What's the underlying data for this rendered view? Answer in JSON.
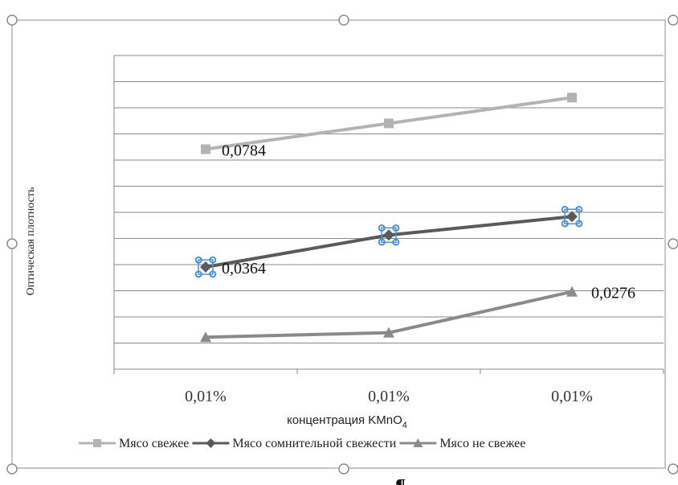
{
  "chart_data": {
    "type": "line",
    "categories": [
      "0,01%",
      "0,01%",
      "0,01%"
    ],
    "xlabel": "концентрация KMnO",
    "xlabel_subscript": "4",
    "ylabel": "Оптическая плотность",
    "title": "",
    "y_grid_lines": 12,
    "grid": true,
    "legend_position": "bottom",
    "series": [
      {
        "name": "Мясо свежее",
        "color": "#b3b3b3",
        "marker": "square",
        "values": [
          0.0784,
          0.0876,
          0.0968
        ],
        "data_labels": [
          "0,0784",
          "",
          ""
        ]
      },
      {
        "name": "Мясо сомнительной свежести",
        "color": "#5a5a5a",
        "marker": "diamond",
        "values": [
          0.0364,
          0.0478,
          0.0544
        ],
        "data_labels": [
          "0,0364",
          "",
          ""
        ]
      },
      {
        "name": "Мясо не свежее",
        "color": "#8a8a8a",
        "marker": "triangle",
        "values": [
          0.0114,
          0.013,
          0.0276
        ],
        "data_labels": [
          "",
          "",
          "0,0276"
        ]
      }
    ],
    "ylim": [
      0,
      0.1118
    ]
  },
  "footer_mark": "¶",
  "accent_color": "#4a90d9"
}
